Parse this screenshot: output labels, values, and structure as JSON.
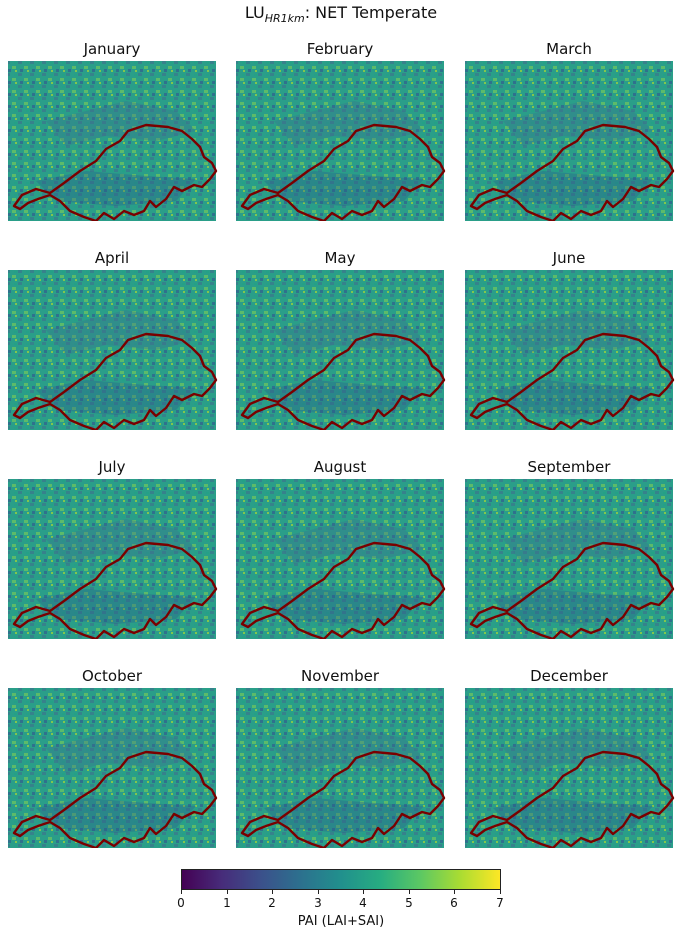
{
  "figure": {
    "title_main": "LU",
    "title_sub": "HR1km",
    "title_rest": ": NET Temperate"
  },
  "panels": [
    {
      "month": "January"
    },
    {
      "month": "February"
    },
    {
      "month": "March"
    },
    {
      "month": "April"
    },
    {
      "month": "May"
    },
    {
      "month": "June"
    },
    {
      "month": "July"
    },
    {
      "month": "August"
    },
    {
      "month": "September"
    },
    {
      "month": "October"
    },
    {
      "month": "November"
    },
    {
      "month": "December"
    }
  ],
  "colorbar": {
    "label": "PAI (LAI+SAI)",
    "ticks": [
      "0",
      "1",
      "2",
      "3",
      "4",
      "5",
      "6",
      "7"
    ],
    "range": [
      0,
      7
    ],
    "colormap": "viridis",
    "colors": [
      "#440154",
      "#472c7a",
      "#3b518b",
      "#2c718e",
      "#21908d",
      "#27ad81",
      "#5cc863",
      "#aadc32",
      "#fde725"
    ]
  },
  "map_style": {
    "border_color": "#7a0000",
    "dominant_pai": 4.2
  }
}
